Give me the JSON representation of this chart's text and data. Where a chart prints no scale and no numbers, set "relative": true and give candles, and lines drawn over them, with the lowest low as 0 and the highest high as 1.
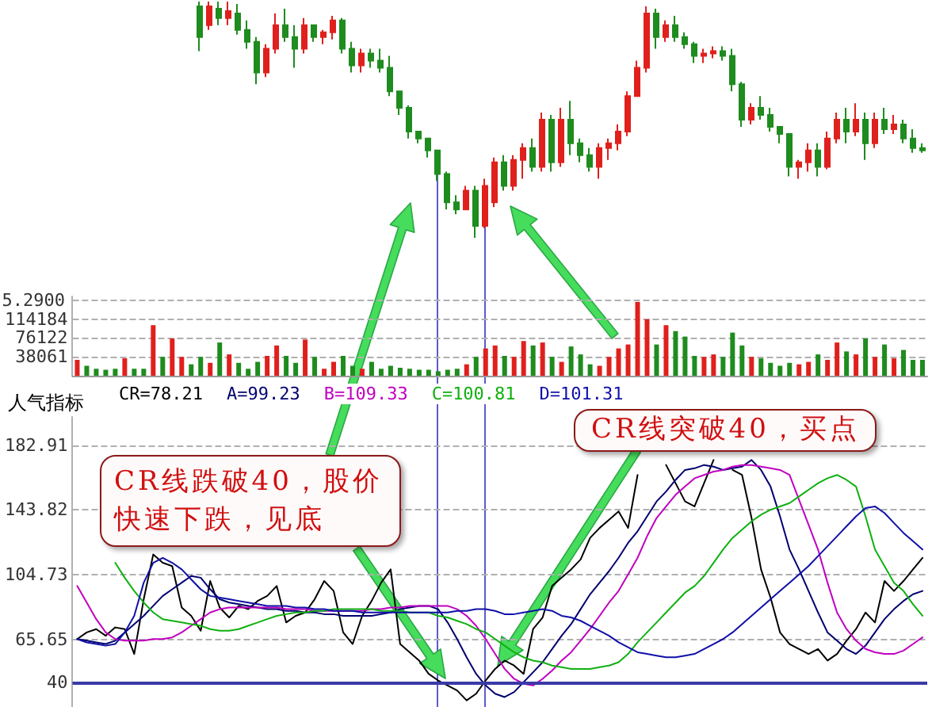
{
  "chart_data": [
    {
      "type": "candlestick",
      "relative": true,
      "tick_labels": false,
      "categories": [
        null,
        null,
        null,
        null,
        null,
        null,
        null,
        null,
        null,
        null,
        null,
        null,
        null,
        null,
        null,
        null,
        null,
        null,
        null,
        null,
        null,
        null,
        null,
        null,
        null,
        null,
        null,
        null,
        null,
        null,
        null,
        null,
        null,
        null,
        null,
        null,
        null,
        null,
        null,
        null,
        null,
        null,
        null,
        null,
        null,
        null,
        null,
        null,
        null,
        null,
        null,
        null,
        null,
        null,
        null,
        null,
        null,
        null,
        null,
        null,
        null,
        null,
        null,
        null,
        null,
        null,
        null,
        null,
        null,
        null,
        null,
        null,
        null,
        null,
        null,
        null,
        null
      ],
      "ohlc": [
        [
          0.98,
          1,
          0.79,
          0.85
        ],
        [
          0.9,
          1,
          0.88,
          0.98
        ],
        [
          0.97,
          1,
          0.9,
          0.93
        ],
        [
          0.93,
          1,
          0.9,
          0.96
        ],
        [
          0.95,
          0.99,
          0.86,
          0.88
        ],
        [
          0.88,
          0.92,
          0.8,
          0.83
        ],
        [
          0.83,
          0.85,
          0.65,
          0.7
        ],
        [
          0.7,
          0.82,
          0.68,
          0.8
        ],
        [
          0.8,
          0.95,
          0.78,
          0.9
        ],
        [
          0.9,
          0.97,
          0.83,
          0.85
        ],
        [
          0.85,
          0.9,
          0.72,
          0.8
        ],
        [
          0.8,
          0.93,
          0.78,
          0.9
        ],
        [
          0.9,
          0.9,
          0.83,
          0.85
        ],
        [
          0.85,
          0.88,
          0.82,
          0.87
        ],
        [
          0.87,
          0.94,
          0.84,
          0.92
        ],
        [
          0.92,
          0.93,
          0.78,
          0.8
        ],
        [
          0.8,
          0.83,
          0.7,
          0.73
        ],
        [
          0.73,
          0.8,
          0.7,
          0.78
        ],
        [
          0.78,
          0.8,
          0.72,
          0.75
        ],
        [
          0.75,
          0.8,
          0.7,
          0.72
        ],
        [
          0.72,
          0.77,
          0.6,
          0.62
        ],
        [
          0.62,
          0.62,
          0.52,
          0.55
        ],
        [
          0.55,
          0.56,
          0.42,
          0.45
        ],
        [
          0.45,
          0.45,
          0.4,
          0.42
        ],
        [
          0.42,
          0.42,
          0.34,
          0.37
        ],
        [
          0.37,
          0.37,
          0.24,
          0.27
        ],
        [
          0.27,
          0.28,
          0.12,
          0.15
        ],
        [
          0.15,
          0.18,
          0.1,
          0.12
        ],
        [
          0.12,
          0.22,
          0.12,
          0.2
        ],
        [
          0.2,
          0.22,
          0,
          0.05
        ],
        [
          0.05,
          0.25,
          0.04,
          0.22
        ],
        [
          0.15,
          0.34,
          0.13,
          0.32
        ],
        [
          0.32,
          0.35,
          0.2,
          0.22
        ],
        [
          0.22,
          0.35,
          0.2,
          0.33
        ],
        [
          0.33,
          0.4,
          0.25,
          0.38
        ],
        [
          0.38,
          0.42,
          0.28,
          0.3
        ],
        [
          0.3,
          0.53,
          0.28,
          0.5
        ],
        [
          0.5,
          0.52,
          0.28,
          0.32
        ],
        [
          0.32,
          0.55,
          0.3,
          0.5
        ],
        [
          0.5,
          0.58,
          0.35,
          0.4
        ],
        [
          0.4,
          0.42,
          0.32,
          0.35
        ],
        [
          0.35,
          0.38,
          0.28,
          0.3
        ],
        [
          0.3,
          0.4,
          0.25,
          0.38
        ],
        [
          0.38,
          0.42,
          0.33,
          0.4
        ],
        [
          0.4,
          0.48,
          0.37,
          0.45
        ],
        [
          0.45,
          0.62,
          0.43,
          0.6
        ],
        [
          0.6,
          0.75,
          0.6,
          0.72
        ],
        [
          0.72,
          0.98,
          0.7,
          0.95
        ],
        [
          0.95,
          0.97,
          0.8,
          0.85
        ],
        [
          0.85,
          0.92,
          0.83,
          0.9
        ],
        [
          0.9,
          0.94,
          0.83,
          0.85
        ],
        [
          0.85,
          0.87,
          0.8,
          0.82
        ],
        [
          0.82,
          0.83,
          0.74,
          0.77
        ],
        [
          0.77,
          0.8,
          0.74,
          0.78
        ],
        [
          0.78,
          0.81,
          0.76,
          0.79
        ],
        [
          0.79,
          0.81,
          0.75,
          0.77
        ],
        [
          0.77,
          0.8,
          0.62,
          0.65
        ],
        [
          0.65,
          0.66,
          0.47,
          0.5
        ],
        [
          0.5,
          0.57,
          0.48,
          0.55
        ],
        [
          0.55,
          0.6,
          0.5,
          0.52
        ],
        [
          0.52,
          0.55,
          0.45,
          0.47
        ],
        [
          0.47,
          0.47,
          0.4,
          0.44
        ],
        [
          0.44,
          0.44,
          0.26,
          0.3
        ],
        [
          0.3,
          0.33,
          0.25,
          0.32
        ],
        [
          0.32,
          0.4,
          0.28,
          0.37
        ],
        [
          0.37,
          0.4,
          0.26,
          0.3
        ],
        [
          0.3,
          0.45,
          0.29,
          0.42
        ],
        [
          0.42,
          0.53,
          0.4,
          0.5
        ],
        [
          0.5,
          0.55,
          0.4,
          0.45
        ],
        [
          0.45,
          0.57,
          0.43,
          0.5
        ],
        [
          0.5,
          0.53,
          0.33,
          0.4
        ],
        [
          0.4,
          0.53,
          0.38,
          0.5
        ],
        [
          0.5,
          0.55,
          0.44,
          0.46
        ],
        [
          0.46,
          0.52,
          0.44,
          0.48
        ],
        [
          0.48,
          0.5,
          0.4,
          0.42
        ],
        [
          0.42,
          0.46,
          0.36,
          0.38
        ],
        [
          0.38,
          0.4,
          0.36,
          0.37
        ]
      ],
      "annotations": [
        "5.2900"
      ],
      "colors": [
        "#1e8c1e",
        "#e0201c",
        "#1e8c1e",
        "#e0201c",
        "#1e8c1e",
        "#1e8c1e",
        "#1e8c1e",
        "#e0201c",
        "#e0201c",
        "#1e8c1e",
        "#1e8c1e",
        "#e0201c",
        "#1e8c1e",
        "#e0201c",
        "#e0201c",
        "#1e8c1e",
        "#1e8c1e",
        "#e0201c",
        "#1e8c1e",
        "#1e8c1e",
        "#1e8c1e",
        "#1e8c1e",
        "#1e8c1e",
        "#1e8c1e",
        "#1e8c1e",
        "#1e8c1e",
        "#1e8c1e",
        "#1e8c1e",
        "#e0201c",
        "#1e8c1e",
        "#e0201c",
        "#e0201c",
        "#1e8c1e",
        "#e0201c",
        "#e0201c",
        "#1e8c1e",
        "#e0201c",
        "#1e8c1e",
        "#e0201c",
        "#1e8c1e",
        "#1e8c1e",
        "#1e8c1e",
        "#e0201c",
        "#e0201c",
        "#e0201c",
        "#e0201c",
        "#e0201c",
        "#e0201c",
        "#1e8c1e",
        "#e0201c",
        "#1e8c1e",
        "#1e8c1e",
        "#1e8c1e",
        "#e0201c",
        "#e0201c",
        "#1e8c1e",
        "#1e8c1e",
        "#1e8c1e",
        "#e0201c",
        "#1e8c1e",
        "#1e8c1e",
        "#1e8c1e",
        "#1e8c1e",
        "#e0201c",
        "#e0201c",
        "#1e8c1e",
        "#e0201c",
        "#e0201c",
        "#1e8c1e",
        "#e0201c",
        "#1e8c1e",
        "#e0201c",
        "#1e8c1e",
        "#e0201c",
        "#1e8c1e",
        "#1e8c1e",
        "#1e8c1e"
      ]
    },
    {
      "type": "bar",
      "tick_labels": "y",
      "grid": "y",
      "categories": [
        null,
        null,
        null,
        null,
        null,
        null,
        null,
        null,
        null,
        null,
        null,
        null,
        null,
        null,
        null,
        null,
        null,
        null,
        null,
        null,
        null,
        null,
        null,
        null,
        null,
        null,
        null,
        null,
        null,
        null,
        null,
        null,
        null,
        null,
        null,
        null,
        null,
        null,
        null,
        null,
        null,
        null,
        null,
        null,
        null,
        null,
        null,
        null,
        null,
        null,
        null,
        null,
        null,
        null,
        null,
        null,
        null,
        null,
        null,
        null,
        null,
        null,
        null,
        null,
        null,
        null,
        null,
        null,
        null,
        null,
        null,
        null,
        null,
        null,
        null,
        null,
        null,
        null,
        null,
        null,
        null,
        null,
        null,
        null,
        null,
        null,
        null,
        null,
        null,
        null
      ],
      "values": [
        32000,
        20000,
        14000,
        12000,
        14000,
        35000,
        14000,
        14000,
        102000,
        38000,
        75000,
        38000,
        23000,
        38000,
        26000,
        67000,
        43000,
        26000,
        14000,
        28000,
        40000,
        61000,
        40000,
        26000,
        73000,
        38000,
        14000,
        28000,
        40000,
        20000,
        14000,
        28000,
        14000,
        20000,
        16000,
        14000,
        12000,
        12000,
        9000,
        12000,
        14000,
        23000,
        38000,
        55000,
        61000,
        40000,
        38000,
        70000,
        61000,
        67000,
        38000,
        28000,
        59000,
        43000,
        23000,
        20000,
        38000,
        55000,
        63000,
        149000,
        114000,
        63000,
        102000,
        90000,
        79000,
        40000,
        38000,
        43000,
        38000,
        87000,
        61000,
        38000,
        35000,
        26000,
        20000,
        26000,
        23000,
        28000,
        43000,
        32000,
        67000,
        49000,
        43000,
        75000,
        38000,
        63000,
        35000,
        52000,
        32000,
        32000
      ],
      "colors": [
        "#e0201c",
        "#1e8c1e",
        "#1e8c1e",
        "#1e8c1e",
        "#1e8c1e",
        "#e0201c",
        "#1e8c1e",
        "#1e8c1e",
        "#e0201c",
        "#1e8c1e",
        "#e0201c",
        "#e0201c",
        "#1e8c1e",
        "#1e8c1e",
        "#e0201c",
        "#1e8c1e",
        "#e0201c",
        "#1e8c1e",
        "#1e8c1e",
        "#1e8c1e",
        "#e0201c",
        "#e0201c",
        "#1e8c1e",
        "#1e8c1e",
        "#e0201c",
        "#1e8c1e",
        "#e0201c",
        "#e0201c",
        "#1e8c1e",
        "#1e8c1e",
        "#e0201c",
        "#1e8c1e",
        "#1e8c1e",
        "#1e8c1e",
        "#1e8c1e",
        "#1e8c1e",
        "#1e8c1e",
        "#1e8c1e",
        "#1e8c1e",
        "#1e8c1e",
        "#1e8c1e",
        "#e0201c",
        "#1e8c1e",
        "#e0201c",
        "#e0201c",
        "#1e8c1e",
        "#e0201c",
        "#e0201c",
        "#1e8c1e",
        "#e0201c",
        "#1e8c1e",
        "#e0201c",
        "#1e8c1e",
        "#1e8c1e",
        "#1e8c1e",
        "#e0201c",
        "#e0201c",
        "#e0201c",
        "#e0201c",
        "#e0201c",
        "#e0201c",
        "#1e8c1e",
        "#e0201c",
        "#1e8c1e",
        "#1e8c1e",
        "#1e8c1e",
        "#e0201c",
        "#e0201c",
        "#1e8c1e",
        "#1e8c1e",
        "#1e8c1e",
        "#e0201c",
        "#1e8c1e",
        "#1e8c1e",
        "#1e8c1e",
        "#1e8c1e",
        "#e0201c",
        "#e0201c",
        "#1e8c1e",
        "#e0201c",
        "#e0201c",
        "#1e8c1e",
        "#e0201c",
        "#1e8c1e",
        "#e0201c",
        "#1e8c1e",
        "#e0201c",
        "#1e8c1e",
        "#1e8c1e",
        "#1e8c1e"
      ],
      "ylim": [
        0,
        160000
      ],
      "yticks": [
        38061,
        76122,
        114184,
        {
          "value": 152245,
          "label": null
        }
      ]
    },
    {
      "type": "line",
      "title": "人气指标",
      "tick_labels": "y",
      "grid": "y",
      "legend": "top left",
      "marker": "none",
      "line_style": "solid",
      "categories": [
        null,
        null,
        null,
        null,
        null,
        null,
        null,
        null,
        null,
        null,
        null,
        null,
        null,
        null,
        null,
        null,
        null,
        null,
        null,
        null,
        null,
        null,
        null,
        null,
        null,
        null,
        null,
        null,
        null,
        null,
        null,
        null,
        null,
        null,
        null,
        null,
        null,
        null,
        null,
        null,
        null,
        null,
        null,
        null,
        null,
        null,
        null,
        null,
        null,
        null,
        null,
        null,
        null,
        null,
        null,
        null,
        null,
        null,
        null,
        null,
        null,
        null,
        null,
        null,
        null,
        null,
        null,
        null,
        null,
        null,
        null,
        null,
        null,
        null,
        null,
        null,
        null,
        null,
        null,
        null,
        null,
        null,
        null,
        null,
        null,
        null,
        null,
        null,
        null,
        null
      ],
      "series": [
        {
          "name": "CR=78.21",
          "color": "#000000",
          "values": [
            66,
            70,
            72,
            68,
            73,
            72,
            57,
            90,
            117,
            112,
            110,
            85,
            80,
            71,
            101,
            85,
            79,
            86,
            84,
            89,
            92,
            98,
            76,
            80,
            82,
            90,
            101,
            95,
            70,
            63,
            80,
            89,
            100,
            108,
            63,
            58,
            53,
            45,
            41,
            38,
            35,
            29,
            33,
            41,
            48,
            53,
            50,
            45,
            72,
            79,
            98,
            103,
            108,
            114,
            127,
            133,
            138,
            143,
            133,
            165,
            null,
            null,
            171,
            160,
            149,
            146,
            160,
            174,
            null,
            168,
            165,
            139,
            108,
            91,
            70,
            63,
            60,
            57,
            60,
            53,
            57,
            65,
            72,
            82,
            76,
            101,
            95,
            101,
            108,
            115
          ]
        },
        {
          "name": "A=99.23",
          "color": "#000070",
          "values": [
            66,
            65,
            64,
            63,
            65,
            70,
            75,
            80,
            86,
            92,
            96,
            100,
            104,
            103,
            96,
            90,
            88,
            87,
            86,
            85,
            84,
            84,
            83,
            83,
            82,
            82,
            81,
            81,
            80,
            80,
            80,
            80,
            81,
            82,
            84,
            85,
            86,
            86,
            84,
            76,
            66,
            55,
            45,
            38,
            33,
            31,
            34,
            40,
            46,
            52,
            60,
            68,
            75,
            84,
            93,
            100,
            107,
            115,
            124,
            131,
            140,
            149,
            155,
            162,
            168,
            169,
            171,
            170,
            168,
            169,
            170,
            174,
            168,
            158,
            140,
            120,
            108,
            95,
            82,
            70,
            65,
            60,
            57,
            62,
            70,
            78,
            84,
            89,
            93,
            95
          ]
        },
        {
          "name": "B=109.33",
          "color": "#c000c0",
          "values": [
            98,
            88,
            78,
            70,
            66,
            65,
            65,
            65,
            66,
            66,
            67,
            70,
            74,
            78,
            82,
            84,
            85,
            85,
            85,
            85,
            85,
            85,
            84,
            84,
            84,
            83,
            83,
            83,
            83,
            83,
            83,
            84,
            84,
            85,
            85,
            86,
            86,
            86,
            86,
            86,
            84,
            80,
            74,
            66,
            57,
            48,
            42,
            39,
            38,
            42,
            47,
            53,
            58,
            65,
            72,
            80,
            88,
            95,
            105,
            115,
            128,
            139,
            146,
            153,
            158,
            163,
            165,
            167,
            168,
            170,
            171,
            171,
            170,
            169,
            168,
            165,
            150,
            135,
            120,
            100,
            82,
            72,
            65,
            60,
            58,
            57,
            57,
            59,
            63,
            67
          ]
        },
        {
          "name": "C=100.81",
          "color": "#10b010",
          "values": [
            null,
            null,
            null,
            null,
            112,
            103,
            95,
            88,
            82,
            78,
            77,
            76,
            75,
            74,
            72,
            71,
            71,
            72,
            74,
            76,
            78,
            80,
            81,
            82,
            82,
            83,
            83,
            84,
            84,
            84,
            84,
            84,
            83,
            83,
            83,
            82,
            82,
            82,
            80,
            79,
            77,
            75,
            72,
            70,
            66,
            62,
            58,
            55,
            53,
            52,
            50,
            49,
            48,
            48,
            48,
            49,
            50,
            52,
            57,
            64,
            70,
            76,
            82,
            88,
            94,
            98,
            104,
            112,
            120,
            127,
            132,
            137,
            141,
            144,
            146,
            148,
            152,
            156,
            160,
            163,
            165,
            162,
            158,
            140,
            120,
            110,
            100,
            95,
            87,
            80
          ]
        },
        {
          "name": "D=101.31",
          "color": "#1010a8",
          "values": [
            66,
            64,
            63,
            62,
            63,
            70,
            80,
            100,
            112,
            115,
            112,
            108,
            102,
            96,
            92,
            91,
            90,
            89,
            88,
            87,
            86,
            86,
            86,
            85,
            85,
            84,
            84,
            83,
            83,
            83,
            82,
            82,
            82,
            82,
            82,
            82,
            82,
            82,
            82,
            82,
            83,
            83,
            84,
            84,
            83,
            81,
            81,
            82,
            83,
            84,
            83,
            80,
            79,
            77,
            74,
            71,
            68,
            64,
            61,
            58,
            57,
            56,
            55,
            55,
            56,
            57,
            60,
            63,
            66,
            70,
            75,
            80,
            85,
            90,
            95,
            100,
            105,
            110,
            116,
            122,
            128,
            134,
            140,
            145,
            146,
            142,
            136,
            130,
            125,
            120
          ]
        }
      ],
      "ylim": [
        25,
        200
      ],
      "yticks": [
        40,
        65.65,
        104.73,
        143.82,
        182.91
      ],
      "ref_lines": [
        {
          "axis": "y",
          "value": 40,
          "color": "#3a3aa8"
        }
      ],
      "annotations": [
        "CR线跌破40，股价快速下跌，见底",
        "CR线突破40，买点"
      ]
    }
  ]
}
